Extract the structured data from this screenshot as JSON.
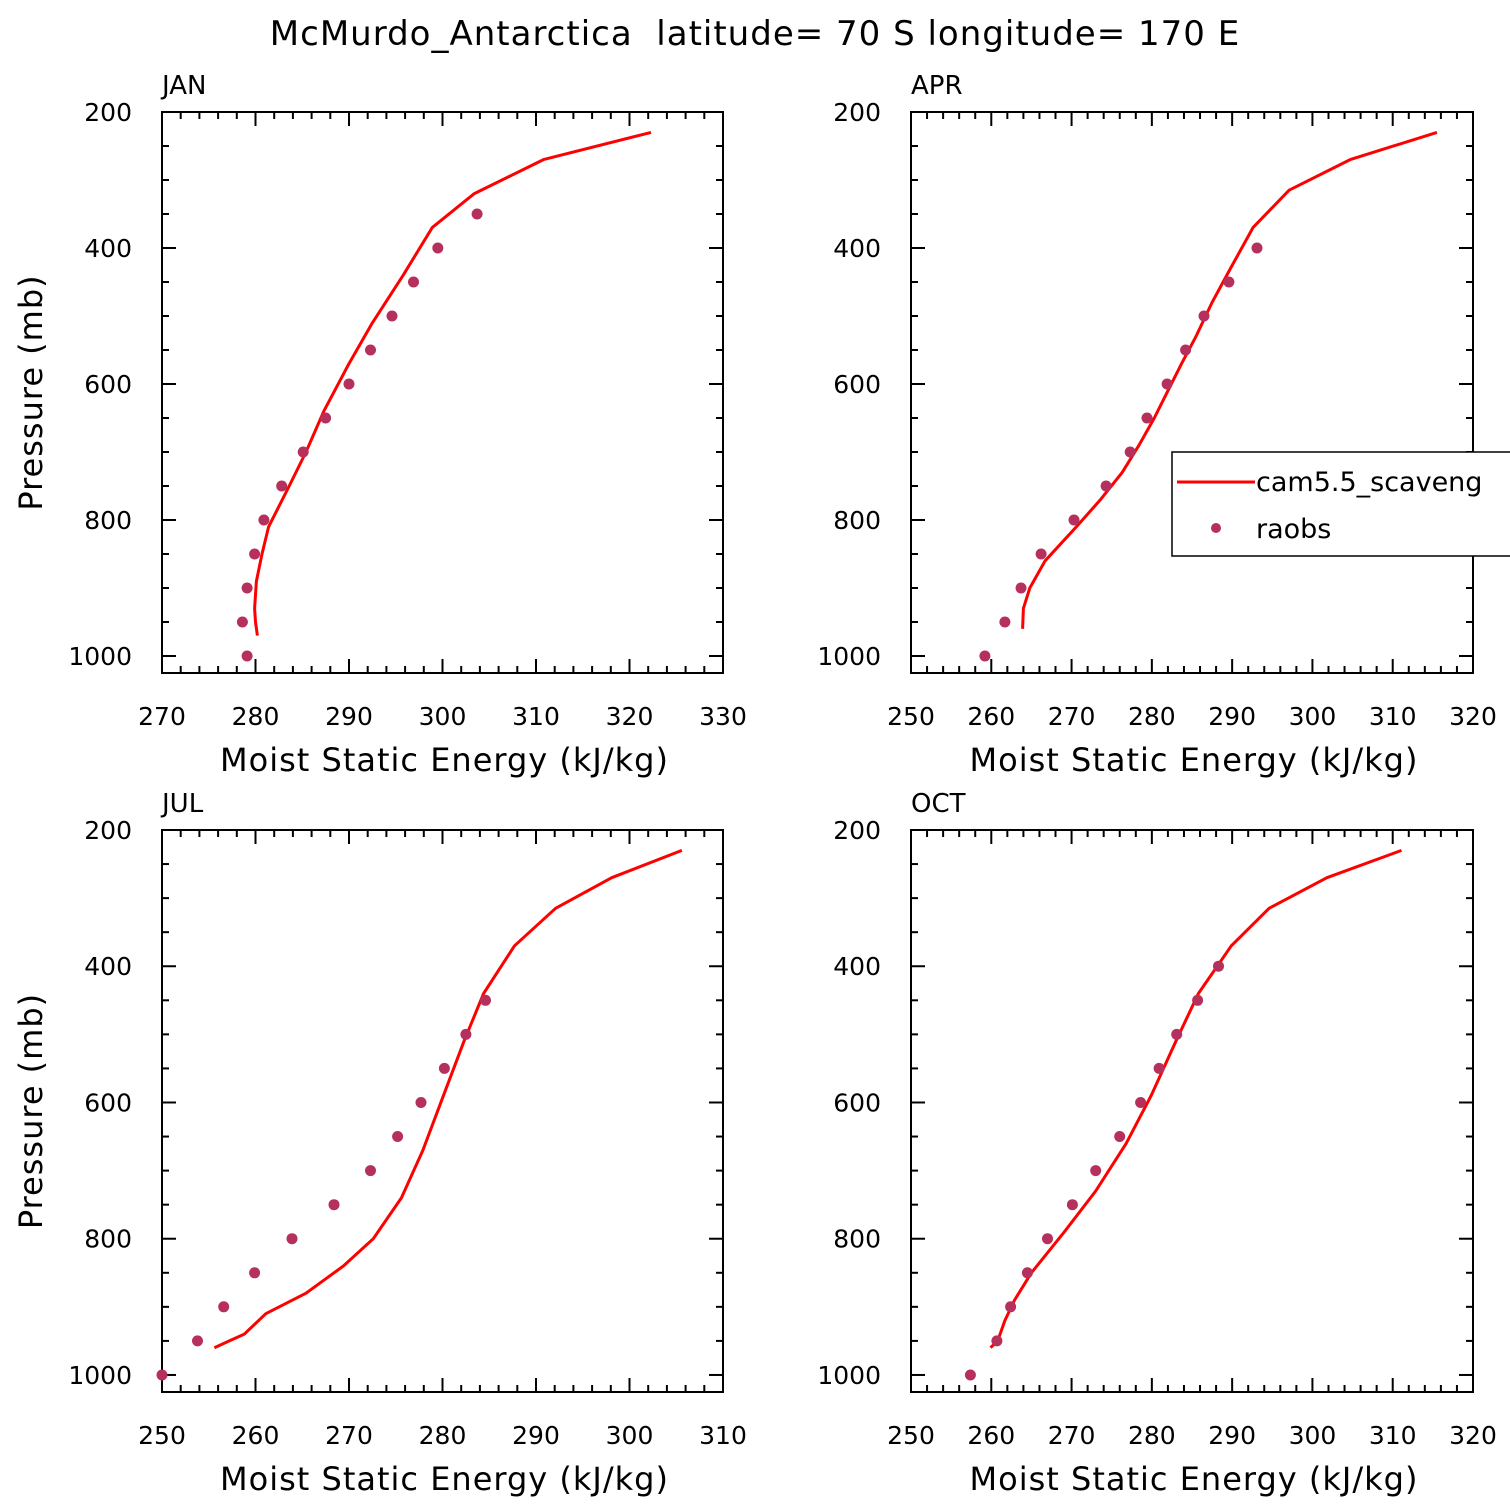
{
  "figure_title": "McMurdo_Antarctica  latitude= 70 S longitude= 170 E",
  "legend": {
    "model_label": "cam5.5_scaveng",
    "obs_label": "raobs",
    "model_color": "#ff0000",
    "obs_color": "#b5305c"
  },
  "chart_data": [
    {
      "type": "line",
      "title": "JAN",
      "xlabel": "Moist Static Energy (kJ/kg)",
      "ylabel": "Pressure (mb)",
      "xlim": [
        270,
        330
      ],
      "ylim": [
        200,
        1025
      ],
      "xticks": [
        "270",
        "280",
        "290",
        "300",
        "310",
        "320",
        "330"
      ],
      "yticks": [
        "200",
        "400",
        "600",
        "800",
        "1000"
      ],
      "series": [
        {
          "name": "cam5.5_scaveng",
          "kind": "line",
          "x": [
            322.3,
            310.8,
            303.4,
            298.9,
            295.8,
            292.5,
            290.0,
            287.3,
            285.4,
            283.6,
            281.4,
            280.7,
            280.1,
            279.9,
            280.0,
            280.2
          ],
          "y": [
            230,
            270,
            320,
            370,
            440,
            510,
            570,
            640,
            700,
            750,
            810,
            850,
            890,
            930,
            950,
            970
          ]
        },
        {
          "name": "raobs",
          "kind": "scatter",
          "x": [
            303.7,
            299.5,
            296.9,
            294.6,
            292.3,
            290.0,
            287.5,
            285.1,
            282.8,
            280.9,
            279.9,
            279.1,
            278.6,
            279.1
          ],
          "y": [
            350,
            400,
            450,
            500,
            550,
            600,
            650,
            700,
            750,
            800,
            850,
            900,
            950,
            1000
          ]
        }
      ]
    },
    {
      "type": "line",
      "title": "APR",
      "xlabel": "Moist Static Energy (kJ/kg)",
      "ylabel": "",
      "xlim": [
        250,
        320
      ],
      "ylim": [
        200,
        1025
      ],
      "xticks": [
        "250",
        "260",
        "270",
        "280",
        "290",
        "300",
        "310",
        "320"
      ],
      "yticks": [
        "200",
        "400",
        "600",
        "800",
        "1000"
      ],
      "series": [
        {
          "name": "cam5.5_scaveng",
          "kind": "line",
          "x": [
            315.5,
            304.7,
            297.1,
            292.6,
            289.8,
            287.5,
            285.5,
            283.7,
            282.0,
            280.3,
            278.4,
            276.3,
            273.6,
            270.6,
            266.7,
            264.8,
            264.0,
            263.9
          ],
          "y": [
            230,
            270,
            315,
            370,
            430,
            480,
            530,
            570,
            610,
            650,
            690,
            730,
            770,
            810,
            860,
            900,
            930,
            960
          ]
        },
        {
          "name": "raobs",
          "kind": "scatter",
          "x": [
            293.1,
            289.6,
            286.5,
            284.2,
            281.9,
            279.4,
            277.3,
            274.3,
            270.3,
            266.2,
            263.7,
            261.7,
            259.2
          ],
          "y": [
            400,
            450,
            500,
            550,
            600,
            650,
            700,
            750,
            800,
            850,
            900,
            950,
            1000
          ]
        }
      ]
    },
    {
      "type": "line",
      "title": "JUL",
      "xlabel": "Moist Static Energy (kJ/kg)",
      "ylabel": "Pressure (mb)",
      "xlim": [
        250,
        310
      ],
      "ylim": [
        200,
        1025
      ],
      "xticks": [
        "250",
        "260",
        "270",
        "280",
        "290",
        "300",
        "310"
      ],
      "yticks": [
        "200",
        "400",
        "600",
        "800",
        "1000"
      ],
      "series": [
        {
          "name": "cam5.5_scaveng",
          "kind": "line",
          "x": [
            305.6,
            298.1,
            292.1,
            287.7,
            284.4,
            282.3,
            280.1,
            277.9,
            275.6,
            272.6,
            269.4,
            265.4,
            261.1,
            258.8,
            257.2,
            255.6
          ],
          "y": [
            230,
            270,
            315,
            370,
            440,
            510,
            590,
            670,
            740,
            800,
            840,
            880,
            910,
            940,
            950,
            960
          ]
        },
        {
          "name": "raobs",
          "kind": "scatter",
          "x": [
            284.6,
            282.5,
            280.2,
            277.7,
            275.2,
            272.3,
            268.4,
            263.9,
            259.9,
            256.6,
            253.8,
            250.0
          ],
          "y": [
            450,
            500,
            550,
            600,
            650,
            700,
            750,
            800,
            850,
            900,
            950,
            1000
          ]
        }
      ]
    },
    {
      "type": "line",
      "title": "OCT",
      "xlabel": "Moist Static Energy (kJ/kg)",
      "ylabel": "",
      "xlim": [
        250,
        320
      ],
      "ylim": [
        200,
        1025
      ],
      "xticks": [
        "250",
        "260",
        "270",
        "280",
        "290",
        "300",
        "310",
        "320"
      ],
      "yticks": [
        "200",
        "400",
        "600",
        "800",
        "1000"
      ],
      "series": [
        {
          "name": "cam5.5_scaveng",
          "kind": "line",
          "x": [
            311.1,
            301.8,
            294.6,
            289.9,
            285.8,
            283.0,
            279.9,
            276.8,
            273.0,
            269.1,
            265.0,
            262.9,
            261.7,
            260.8,
            259.9
          ],
          "y": [
            230,
            270,
            315,
            370,
            440,
            510,
            590,
            660,
            730,
            790,
            850,
            890,
            920,
            950,
            960
          ]
        },
        {
          "name": "raobs",
          "kind": "scatter",
          "x": [
            288.3,
            285.7,
            283.1,
            280.9,
            278.6,
            276.0,
            273.0,
            270.1,
            267.0,
            264.5,
            262.4,
            260.7,
            257.4
          ],
          "y": [
            400,
            450,
            500,
            550,
            600,
            650,
            700,
            750,
            800,
            850,
            900,
            950,
            1000
          ]
        }
      ]
    }
  ]
}
